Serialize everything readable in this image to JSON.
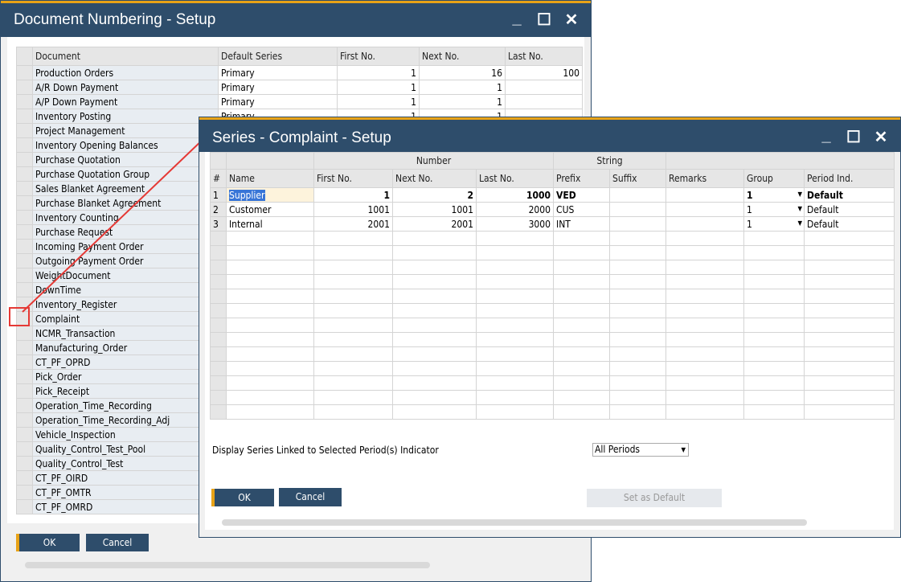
{
  "back_window": {
    "title": "Document Numbering - Setup",
    "columns": [
      "Document",
      "Default Series",
      "First No.",
      "Next No.",
      "Last No."
    ],
    "rows": [
      [
        "Production Orders",
        "Primary",
        "1",
        "16",
        "100"
      ],
      [
        "A/R Down Payment",
        "Primary",
        "1",
        "1",
        ""
      ],
      [
        "A/P Down Payment",
        "Primary",
        "1",
        "1",
        ""
      ],
      [
        "Inventory Posting",
        "Primary",
        "1",
        "1",
        ""
      ],
      [
        "Project Management",
        "",
        "",
        "",
        ""
      ],
      [
        "Inventory Opening Balances",
        "",
        "",
        "",
        ""
      ],
      [
        "Purchase Quotation",
        "",
        "",
        "",
        ""
      ],
      [
        "Purchase Quotation Group",
        "",
        "",
        "",
        ""
      ],
      [
        "Sales Blanket Agreement",
        "",
        "",
        "",
        ""
      ],
      [
        "Purchase Blanket Agreement",
        "",
        "",
        "",
        ""
      ],
      [
        "Inventory Counting",
        "",
        "",
        "",
        ""
      ],
      [
        "Purchase Request",
        "",
        "",
        "",
        ""
      ],
      [
        "Incoming Payment Order",
        "",
        "",
        "",
        ""
      ],
      [
        "Outgoing Payment Order",
        "",
        "",
        "",
        ""
      ],
      [
        "WeightDocument",
        "",
        "",
        "",
        ""
      ],
      [
        "DownTime",
        "",
        "",
        "",
        ""
      ],
      [
        "Inventory_Register",
        "",
        "",
        "",
        ""
      ],
      [
        "Complaint",
        "",
        "",
        "",
        ""
      ],
      [
        "NCMR_Transaction",
        "",
        "",
        "",
        ""
      ],
      [
        "Manufacturing_Order",
        "",
        "",
        "",
        ""
      ],
      [
        "CT_PF_OPRD",
        "",
        "",
        "",
        ""
      ],
      [
        "Pick_Order",
        "",
        "",
        "",
        ""
      ],
      [
        "Pick_Receipt",
        "",
        "",
        "",
        ""
      ],
      [
        "Operation_Time_Recording",
        "",
        "",
        "",
        ""
      ],
      [
        "Operation_Time_Recording_Adj",
        "",
        "",
        "",
        ""
      ],
      [
        "Vehicle_Inspection",
        "",
        "",
        "",
        ""
      ],
      [
        "Quality_Control_Test_Pool",
        "",
        "",
        "",
        ""
      ],
      [
        "Quality_Control_Test",
        "",
        "",
        "",
        ""
      ],
      [
        "CT_PF_OIRD",
        "",
        "",
        "",
        ""
      ],
      [
        "CT_PF_OMTR",
        "",
        "",
        "",
        ""
      ],
      [
        "CT_PF_OMRD",
        "",
        "",
        "",
        ""
      ]
    ],
    "ok": "OK",
    "cancel": "Cancel"
  },
  "front_window": {
    "title": "Series - Complaint - Setup",
    "group_headers": {
      "number": "Number",
      "string": "String"
    },
    "columns": [
      "#",
      "Name",
      "First No.",
      "Next No.",
      "Last No.",
      "Prefix",
      "Suffix",
      "Remarks",
      "Group",
      "Period Ind."
    ],
    "rows": [
      [
        "1",
        "Supplier",
        "1",
        "2",
        "1000",
        "VED",
        "",
        "",
        "1",
        "Default"
      ],
      [
        "2",
        "Customer",
        "1001",
        "1001",
        "2000",
        "CUS",
        "",
        "",
        "1",
        "Default"
      ],
      [
        "3",
        "Internal",
        "2001",
        "2001",
        "3000",
        "INT",
        "",
        "",
        "1",
        "Default"
      ]
    ],
    "period_label": "Display Series Linked to Selected Period(s) Indicator",
    "period_value": "All Periods",
    "ok": "OK",
    "cancel": "Cancel",
    "set_default": "Set as Default"
  },
  "window_controls": {
    "minimize": "_",
    "maximize": "☐",
    "close": "✕"
  },
  "colors": {
    "titlebar": "#2e4d6b",
    "accent": "#e8a317",
    "annotation": "#e53935"
  }
}
